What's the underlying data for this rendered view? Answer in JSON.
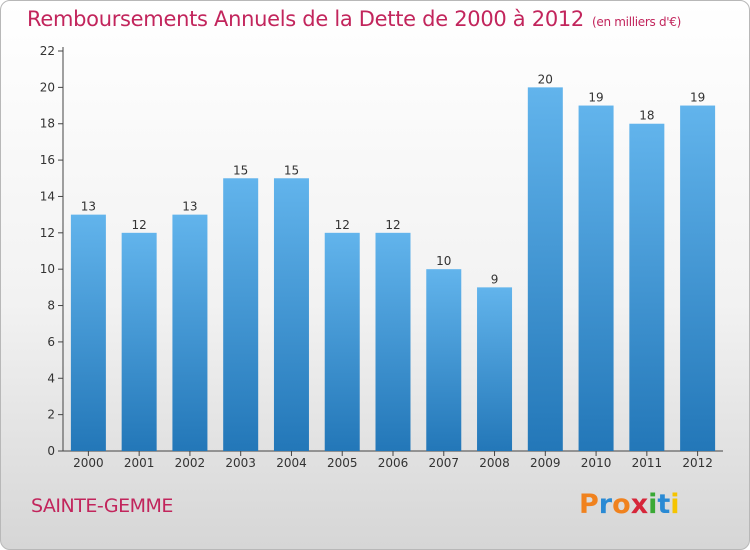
{
  "header": {
    "title": "Remboursements Annuels de la Dette de 2000 à 2012",
    "unit": "(en milliers d'€)"
  },
  "commune": "SAINTE-GEMME",
  "logo": {
    "letters": [
      "P",
      "r",
      "o",
      "x",
      "i",
      "t",
      "i"
    ],
    "colors": [
      "#f0821e",
      "#2a8ad4",
      "#f0821e",
      "#d6263a",
      "#3aa935",
      "#2a8ad4",
      "#f5c400"
    ]
  },
  "colors": {
    "accent": "#c2255c",
    "bar_light": "#62b4ec",
    "bar_dark": "#2377b8"
  },
  "chart_data": {
    "type": "bar",
    "categories": [
      "2000",
      "2001",
      "2002",
      "2003",
      "2004",
      "2005",
      "2006",
      "2007",
      "2008",
      "2009",
      "2010",
      "2011",
      "2012"
    ],
    "values": [
      13,
      12,
      13,
      15,
      15,
      12,
      12,
      10,
      9,
      20,
      19,
      18,
      19
    ],
    "title": "Remboursements Annuels de la Dette de 2000 à 2012",
    "ylim": [
      0,
      22
    ],
    "yticks": [
      0,
      2,
      4,
      6,
      8,
      10,
      12,
      14,
      16,
      18,
      20,
      22
    ],
    "grid": false,
    "legend": "none"
  }
}
